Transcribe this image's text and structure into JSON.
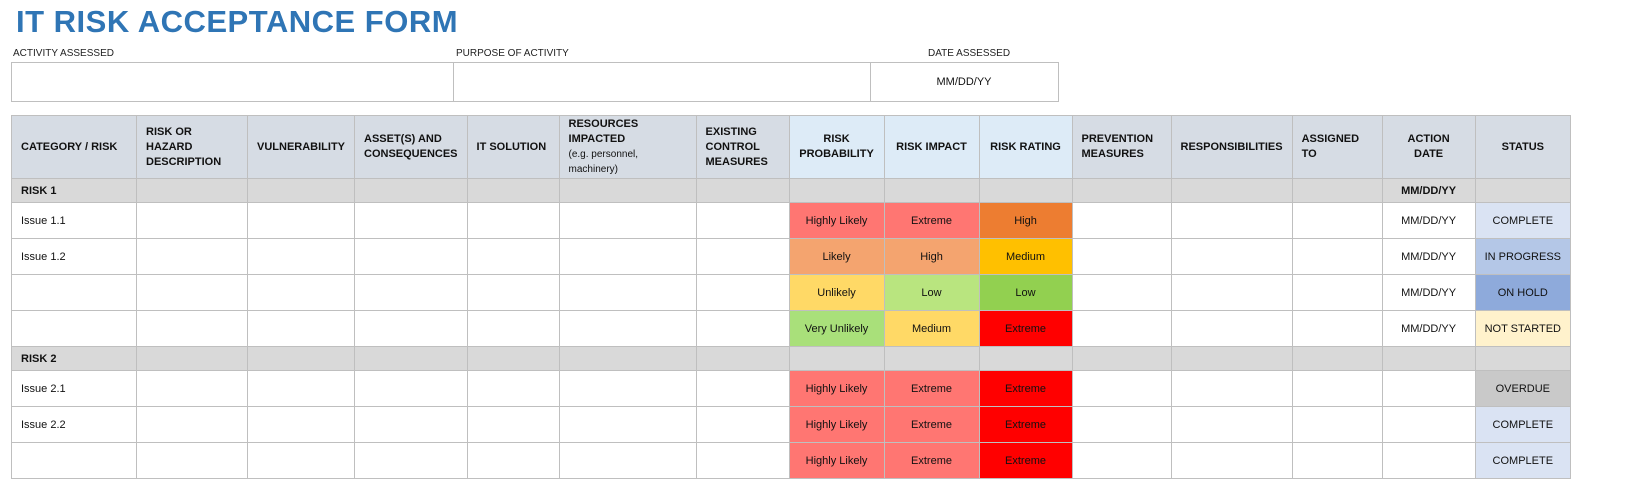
{
  "title": "IT RISK ACCEPTANCE FORM",
  "top": {
    "activity_label": "ACTIVITY ASSESSED",
    "purpose_label": "PURPOSE OF ACTIVITY",
    "date_label": "DATE ASSESSED",
    "activity_value": "",
    "purpose_value": "",
    "date_value": "MM/DD/YY"
  },
  "headers": [
    "CATEGORY / RISK",
    "RISK OR HAZARD DESCRIPTION",
    "VULNERABILITY",
    "ASSET(S) AND CONSEQUENCES",
    "IT SOLUTION",
    "RESOURCES IMPACTED",
    "EXISTING CONTROL MEASURES",
    "RISK PROBABILITY",
    "RISK IMPACT",
    "RISK RATING",
    "PREVENTION MEASURES",
    "RESPONSIBILITIES",
    "ASSIGNED TO",
    "ACTION DATE",
    "STATUS"
  ],
  "resources_note": "(e.g. personnel, machinery)",
  "colors": {
    "Highly Likely": "#ff7672",
    "Likely": "#f4a46f",
    "Unlikely": "#ffd966",
    "Very Unlikely": "#a9e07a",
    "Extreme": "#ff7672",
    "High": "#f4a46f",
    "Low": "#b9e57f",
    "Medium": "#ffd966",
    "rating_High": "#ed7d31",
    "rating_Medium": "#ffc000",
    "rating_Low": "#92d050",
    "rating_Extreme": "#ff0000",
    "COMPLETE": "#dae3f3",
    "IN PROGRESS": "#b4c7e7",
    "ON HOLD": "#8eaadb",
    "NOT STARTED": "#fff2cc",
    "OVERDUE": "#c9c9c9"
  },
  "rows": [
    {
      "type": "section",
      "label": "RISK 1",
      "action_date": "MM/DD/YY"
    },
    {
      "type": "item",
      "label": "Issue 1.1",
      "probability": "Highly Likely",
      "impact": "Extreme",
      "rating": "High",
      "action_date": "MM/DD/YY",
      "status": "COMPLETE"
    },
    {
      "type": "item",
      "label": "Issue 1.2",
      "probability": "Likely",
      "impact": "High",
      "rating": "Medium",
      "action_date": "MM/DD/YY",
      "status": "IN PROGRESS"
    },
    {
      "type": "item",
      "label": "",
      "probability": "Unlikely",
      "impact": "Low",
      "rating": "Low",
      "action_date": "MM/DD/YY",
      "status": "ON HOLD"
    },
    {
      "type": "item",
      "label": "",
      "probability": "Very Unlikely",
      "impact": "Medium",
      "rating": "Extreme",
      "action_date": "MM/DD/YY",
      "status": "NOT STARTED"
    },
    {
      "type": "section",
      "label": "RISK 2",
      "action_date": ""
    },
    {
      "type": "item",
      "label": "Issue 2.1",
      "probability": "Highly Likely",
      "impact": "Extreme",
      "rating": "Extreme",
      "action_date": "",
      "status": "OVERDUE"
    },
    {
      "type": "item",
      "label": "Issue 2.2",
      "probability": "Highly Likely",
      "impact": "Extreme",
      "rating": "Extreme",
      "action_date": "",
      "status": "COMPLETE"
    },
    {
      "type": "item",
      "label": "",
      "probability": "Highly Likely",
      "impact": "Extreme",
      "rating": "Extreme",
      "action_date": "",
      "status": "COMPLETE"
    }
  ]
}
